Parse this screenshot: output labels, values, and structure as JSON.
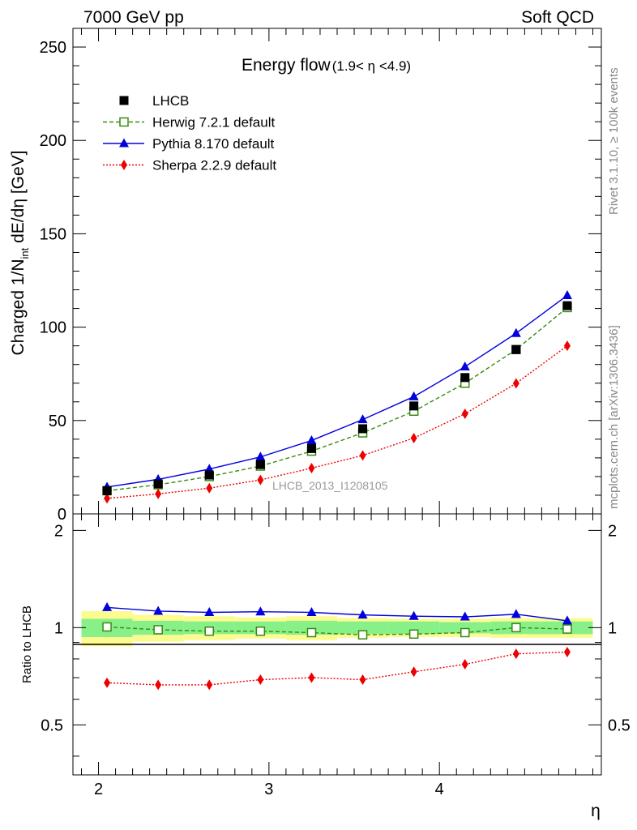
{
  "header": {
    "left": "7000 GeV pp",
    "right": "Soft QCD"
  },
  "side_text": {
    "rivet": "Rivet 3.1.10, ≥ 100k events",
    "mcplots": "mcplots.cern.ch [arXiv:1306.3436]"
  },
  "watermark": "LHCB_2013_I1208105",
  "chart_data": [
    {
      "type": "line",
      "title": "Energy flow",
      "subtitle": "(1.9< η <4.9)",
      "ylabel_main": "Charged 1/N",
      "ylabel_sub": "int",
      "ylabel_tail": " dE/dη [GeV]",
      "xlabel": "η",
      "xlim": [
        1.85,
        4.95
      ],
      "ylim": [
        0,
        260
      ],
      "yticks": [
        0,
        50,
        100,
        150,
        200,
        250
      ],
      "ytick_labels": [
        "0",
        "50",
        "100",
        "150",
        "200",
        "250"
      ],
      "xticks": [
        2,
        3,
        4
      ],
      "xtick_labels": [
        "2",
        "3",
        "4"
      ],
      "legend_position": "top-left",
      "x": [
        2.05,
        2.35,
        2.65,
        2.95,
        3.25,
        3.55,
        3.85,
        4.15,
        4.45,
        4.75
      ],
      "series": [
        {
          "name": "LHCB",
          "color": "#000000",
          "marker": "square-filled",
          "values": [
            12.4,
            16.1,
            20.8,
            26.4,
            35.0,
            45.6,
            57.8,
            73.0,
            88.0,
            111.5
          ]
        },
        {
          "name": "Herwig 7.2.1 default",
          "color": "#3a8a10",
          "marker": "square-open",
          "values": [
            12.4,
            15.6,
            20.0,
            25.6,
            33.6,
            43.4,
            55.0,
            70.0,
            88.0,
            110.5
          ]
        },
        {
          "name": "Pythia 8.170 default",
          "color": "#0000dd",
          "marker": "triangle",
          "values": [
            14.4,
            18.5,
            24.0,
            30.5,
            39.3,
            50.5,
            62.8,
            78.8,
            96.7,
            117.0
          ]
        },
        {
          "name": "Sherpa 2.2.9 default",
          "color": "#ee0000",
          "marker": "diamond",
          "values": [
            8.3,
            10.7,
            13.8,
            18.2,
            24.5,
            31.3,
            40.6,
            53.6,
            69.9,
            90.0
          ]
        }
      ]
    },
    {
      "type": "line",
      "ylabel": "Ratio to LHCB",
      "xlim": [
        1.85,
        4.95
      ],
      "ylim": [
        0.35,
        2.25
      ],
      "yticks": [
        0.5,
        1,
        2
      ],
      "ytick_labels": [
        "0.5",
        "1",
        "2"
      ],
      "x": [
        2.05,
        2.35,
        2.65,
        2.95,
        3.25,
        3.55,
        3.85,
        4.15,
        4.45,
        4.75
      ],
      "bands": {
        "edges": [
          1.9,
          2.2,
          2.5,
          2.8,
          3.1,
          3.4,
          3.7,
          4.0,
          4.3,
          4.6,
          4.9
        ],
        "green_half_width": [
          0.065,
          0.05,
          0.045,
          0.045,
          0.05,
          0.045,
          0.045,
          0.04,
          0.045,
          0.045
        ],
        "yellow_half_width": [
          0.125,
          0.095,
          0.085,
          0.075,
          0.085,
          0.07,
          0.065,
          0.065,
          0.07,
          0.07
        ],
        "green_color": "#88f088",
        "yellow_color": "#fbfb90"
      },
      "series": [
        {
          "name": "Herwig 7.2.1 default",
          "color": "#3a8a10",
          "marker": "square-open",
          "values": [
            1.005,
            0.985,
            0.975,
            0.975,
            0.965,
            0.95,
            0.955,
            0.965,
            1.0,
            0.99
          ]
        },
        {
          "name": "Pythia 8.170 default",
          "color": "#0000dd",
          "marker": "triangle",
          "values": [
            1.155,
            1.125,
            1.115,
            1.12,
            1.115,
            1.095,
            1.085,
            1.08,
            1.1,
            1.05
          ]
        },
        {
          "name": "Sherpa 2.2.9 default",
          "color": "#ee0000",
          "marker": "diamond",
          "values": [
            0.675,
            0.665,
            0.665,
            0.69,
            0.7,
            0.69,
            0.73,
            0.77,
            0.83,
            0.84
          ]
        }
      ]
    }
  ]
}
